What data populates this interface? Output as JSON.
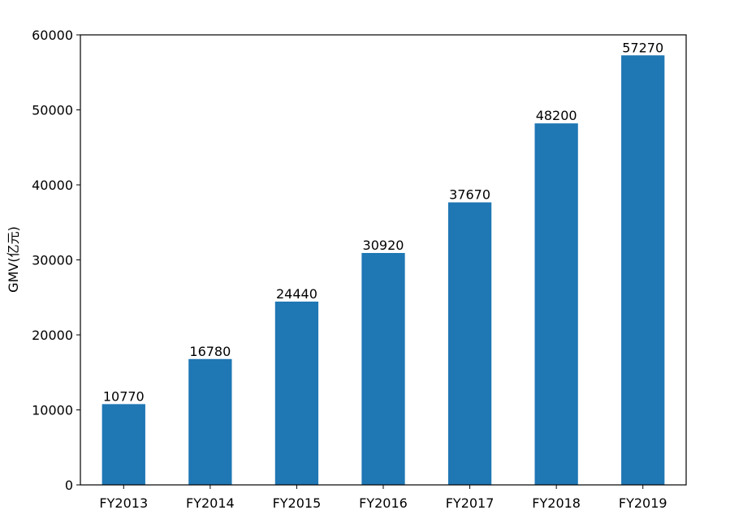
{
  "chart_data": {
    "type": "bar",
    "title": "",
    "xlabel": "",
    "ylabel": "GMV(亿元)",
    "categories": [
      "FY2013",
      "FY2014",
      "FY2015",
      "FY2016",
      "FY2017",
      "FY2018",
      "FY2019"
    ],
    "values": [
      10770,
      16780,
      24440,
      30920,
      37670,
      48200,
      57270
    ],
    "ylim": [
      0,
      60000
    ],
    "yticks": [
      0,
      10000,
      20000,
      30000,
      40000,
      50000,
      60000
    ],
    "grid": false,
    "legend": "none",
    "bar_color": "#1f77b4",
    "show_data_labels": true
  }
}
